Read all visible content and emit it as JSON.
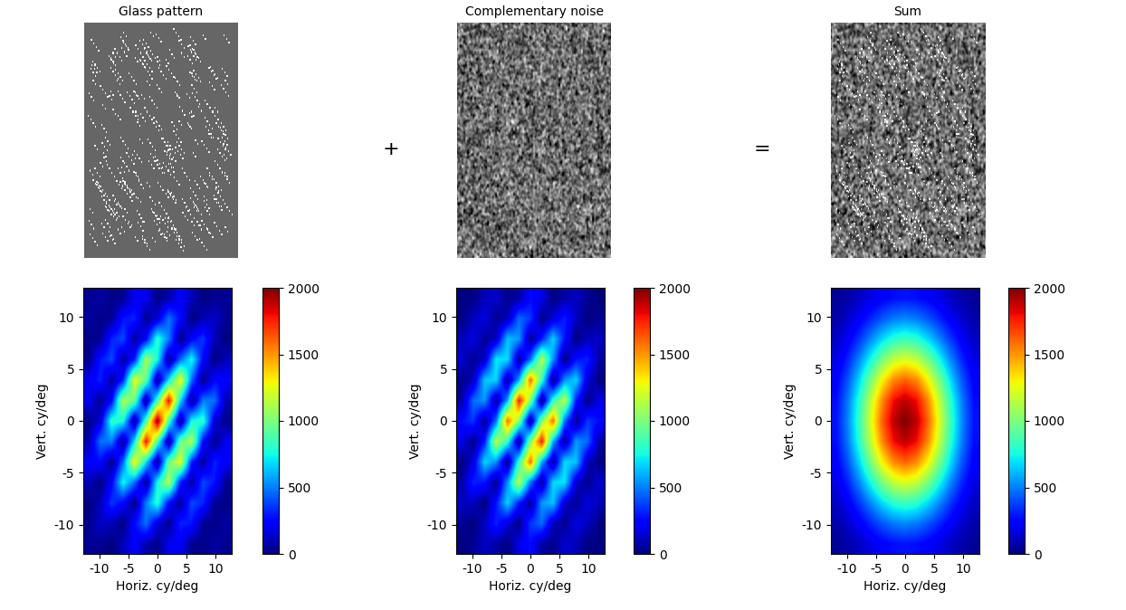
{
  "images": [
    {
      "title": "Glass pattern"
    },
    {
      "title": "Complementary noise"
    },
    {
      "title": "Sum"
    }
  ],
  "operators": [
    "+",
    "="
  ],
  "chart_data": [
    {
      "type": "heatmap",
      "xlabel": "Horiz. cy/deg",
      "ylabel": "Vert. cy/deg",
      "xlim": [
        -12.8,
        12.8
      ],
      "ylim": [
        -12.8,
        12.8
      ],
      "xticks": [
        -10,
        -5,
        0,
        5,
        10
      ],
      "yticks": [
        -10,
        -5,
        0,
        5,
        10
      ],
      "colorbar_range": [
        0,
        2000
      ],
      "colorbar_ticks": [
        0,
        500,
        1000,
        1500,
        2000
      ],
      "cells": [
        [
          41,
          35,
          1,
          110,
          225,
          84,
          17,
          207,
          209,
          32,
          18,
          66,
          32
        ],
        [
          35,
          135,
          101,
          3,
          260,
          478,
          161,
          30,
          318,
          288,
          39,
          20,
          66
        ],
        [
          1,
          101,
          356,
          239,
          7,
          496,
          819,
          248,
          41,
          395,
          320,
          39,
          18
        ],
        [
          110,
          3,
          239,
          758,
          457,
          12,
          763,
          1132,
          308,
          45,
          395,
          288,
          32
        ],
        [
          225,
          260,
          7,
          457,
          1299,
          702,
          16,
          947,
          1260,
          308,
          41,
          318,
          209
        ],
        [
          84,
          478,
          496,
          12,
          702,
          1796,
          872,
          18,
          947,
          1132,
          248,
          30,
          207
        ],
        [
          17,
          161,
          819,
          763,
          16,
          872,
          2000,
          872,
          16,
          763,
          819,
          161,
          17
        ],
        [
          207,
          30,
          248,
          1132,
          947,
          18,
          872,
          1796,
          702,
          12,
          496,
          478,
          84
        ],
        [
          209,
          318,
          41,
          308,
          1260,
          947,
          16,
          702,
          1299,
          457,
          7,
          260,
          225
        ],
        [
          32,
          288,
          395,
          45,
          308,
          1132,
          763,
          12,
          457,
          758,
          239,
          3,
          110
        ],
        [
          18,
          39,
          320,
          395,
          41,
          248,
          819,
          496,
          7,
          239,
          356,
          101,
          1
        ],
        [
          66,
          20,
          39,
          288,
          318,
          30,
          161,
          478,
          260,
          3,
          101,
          135,
          35
        ],
        [
          32,
          66,
          18,
          32,
          209,
          207,
          17,
          84,
          225,
          110,
          1,
          35,
          41
        ]
      ]
    },
    {
      "type": "heatmap",
      "xlabel": "Horiz. cy/deg",
      "ylabel": "Vert. cy/deg",
      "xlim": [
        -12.8,
        12.8
      ],
      "ylim": [
        -12.8,
        12.8
      ],
      "xticks": [
        -10,
        -5,
        0,
        5,
        10
      ],
      "yticks": [
        -10,
        -5,
        0,
        5,
        10
      ],
      "colorbar_range": [
        0,
        2000
      ],
      "colorbar_ticks": [
        0,
        500,
        1000,
        1500,
        2000
      ],
      "cells": [
        [
          0,
          40,
          120,
          67,
          7,
          188,
          270,
          65,
          23,
          145,
          103,
          9,
          9
        ],
        [
          40,
          0,
          118,
          317,
          159,
          15,
          359,
          463,
          101,
          32,
          180,
          115,
          9
        ],
        [
          120,
          118,
          0,
          281,
          674,
          304,
          25,
          552,
          640,
          125,
          36,
          180,
          103
        ],
        [
          67,
          317,
          281,
          0,
          536,
          1155,
          468,
          35,
          685,
          713,
          125,
          32,
          145
        ],
        [
          7,
          159,
          674,
          536,
          0,
          825,
          1596,
          580,
          39,
          685,
          640,
          101,
          23
        ],
        [
          188,
          15,
          304,
          1155,
          825,
          0,
          1023,
          1778,
          580,
          35,
          552,
          463,
          65
        ],
        [
          270,
          359,
          25,
          468,
          1596,
          1023,
          0,
          1023,
          1596,
          468,
          25,
          359,
          270
        ],
        [
          65,
          463,
          552,
          35,
          580,
          1778,
          1023,
          0,
          825,
          1155,
          304,
          15,
          188
        ],
        [
          23,
          101,
          640,
          685,
          39,
          580,
          1596,
          825,
          0,
          536,
          674,
          159,
          7
        ],
        [
          145,
          32,
          125,
          713,
          685,
          35,
          468,
          1155,
          536,
          0,
          281,
          317,
          67
        ],
        [
          103,
          180,
          36,
          125,
          640,
          552,
          25,
          304,
          674,
          281,
          0,
          118,
          120
        ],
        [
          9,
          115,
          180,
          32,
          101,
          463,
          359,
          15,
          159,
          317,
          118,
          0,
          40
        ],
        [
          9,
          9,
          103,
          145,
          23,
          65,
          270,
          188,
          7,
          67,
          120,
          40,
          0
        ]
      ]
    },
    {
      "type": "heatmap",
      "xlabel": "Horiz. cy/deg",
      "ylabel": "Vert. cy/deg",
      "xlim": [
        -12.8,
        12.8
      ],
      "ylim": [
        -12.8,
        12.8
      ],
      "xticks": [
        -10,
        -5,
        0,
        5,
        10
      ],
      "yticks": [
        -10,
        -5,
        0,
        5,
        10
      ],
      "colorbar_range": [
        0,
        2000
      ],
      "colorbar_ticks": [
        0,
        500,
        1000,
        1500,
        2000
      ],
      "cells": [
        [
          41,
          75,
          121,
          177,
          232,
          272,
          287,
          272,
          232,
          177,
          121,
          75,
          41
        ],
        [
          75,
          135,
          219,
          320,
          419,
          493,
          520,
          493,
          419,
          320,
          219,
          135,
          75
        ],
        [
          121,
          219,
          356,
          520,
          681,
          800,
          844,
          800,
          681,
          520,
          356,
          219,
          121
        ],
        [
          177,
          320,
          520,
          758,
          993,
          1167,
          1231,
          1167,
          993,
          758,
          520,
          320,
          177
        ],
        [
          232,
          419,
          681,
          993,
          1299,
          1527,
          1612,
          1527,
          1299,
          993,
          681,
          419,
          232
        ],
        [
          272,
          493,
          800,
          1167,
          1527,
          1796,
          1895,
          1796,
          1527,
          1167,
          800,
          493,
          272
        ],
        [
          287,
          520,
          844,
          1231,
          1612,
          1895,
          2000,
          1895,
          1612,
          1231,
          844,
          520,
          287
        ],
        [
          272,
          493,
          800,
          1167,
          1527,
          1796,
          1895,
          1796,
          1527,
          1167,
          800,
          493,
          272
        ],
        [
          232,
          419,
          681,
          993,
          1299,
          1527,
          1612,
          1527,
          1299,
          993,
          681,
          419,
          232
        ],
        [
          177,
          320,
          520,
          758,
          993,
          1167,
          1231,
          1167,
          993,
          758,
          520,
          320,
          177
        ],
        [
          121,
          219,
          356,
          520,
          681,
          800,
          844,
          800,
          681,
          520,
          356,
          219,
          121
        ],
        [
          75,
          135,
          219,
          320,
          419,
          493,
          520,
          493,
          419,
          320,
          219,
          135,
          75
        ],
        [
          41,
          75,
          121,
          177,
          232,
          272,
          287,
          272,
          232,
          177,
          121,
          75,
          41
        ]
      ]
    }
  ]
}
